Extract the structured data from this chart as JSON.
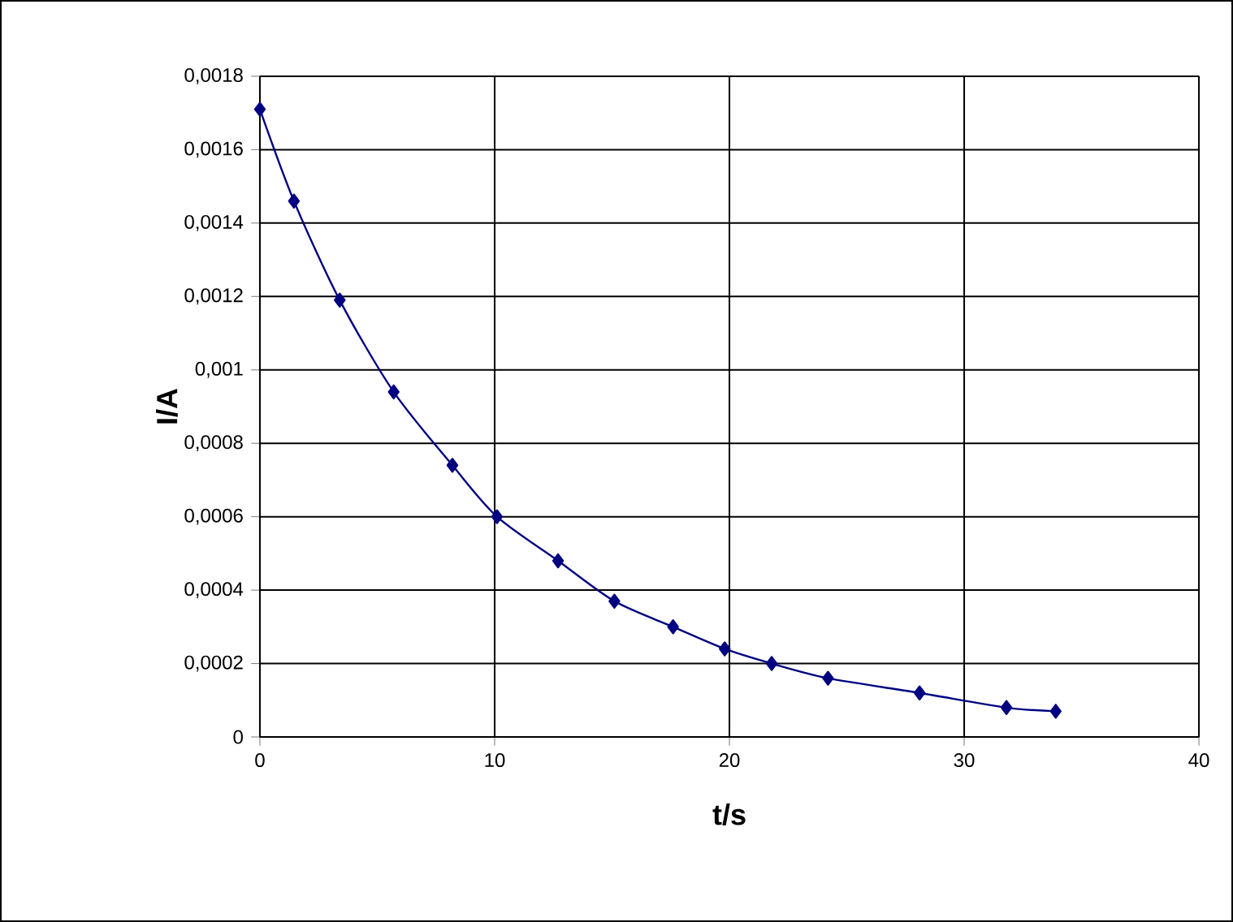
{
  "chart_data": {
    "type": "line",
    "xlabel": "t/s",
    "ylabel": "I/A",
    "x": [
      0,
      1.45,
      3.4,
      5.7,
      8.2,
      10.1,
      12.7,
      15.1,
      17.6,
      19.8,
      21.8,
      24.2,
      28.1,
      31.8,
      33.9
    ],
    "series": [
      {
        "color": "#000080",
        "values": [
          0.00171,
          0.00146,
          0.00119,
          0.00094,
          0.00074,
          0.0006,
          0.00048,
          0.00037,
          0.0003,
          0.00024,
          0.0002,
          0.00016,
          0.00012,
          8e-05,
          7e-05
        ]
      }
    ],
    "xlim": [
      0,
      40
    ],
    "xticks": [
      0,
      10,
      20,
      30,
      40
    ],
    "ylim": [
      0,
      0.0018
    ],
    "yticks": [
      0,
      {
        "value": 0.0002,
        "label": "0,0002"
      },
      {
        "value": 0.0004,
        "label": "0,0004"
      },
      {
        "value": 0.0006,
        "label": "0,0006"
      },
      {
        "value": 0.0008,
        "label": "0,0008"
      },
      {
        "value": 0.001,
        "label": "0,001"
      },
      {
        "value": 0.0012,
        "label": "0,0012"
      },
      {
        "value": 0.0014,
        "label": "0,0014"
      },
      {
        "value": 0.0016,
        "label": "0,0016"
      },
      {
        "value": 0.0018,
        "label": "0,0018"
      }
    ],
    "grid": true,
    "marker": "diamond",
    "line_style": "solid"
  }
}
